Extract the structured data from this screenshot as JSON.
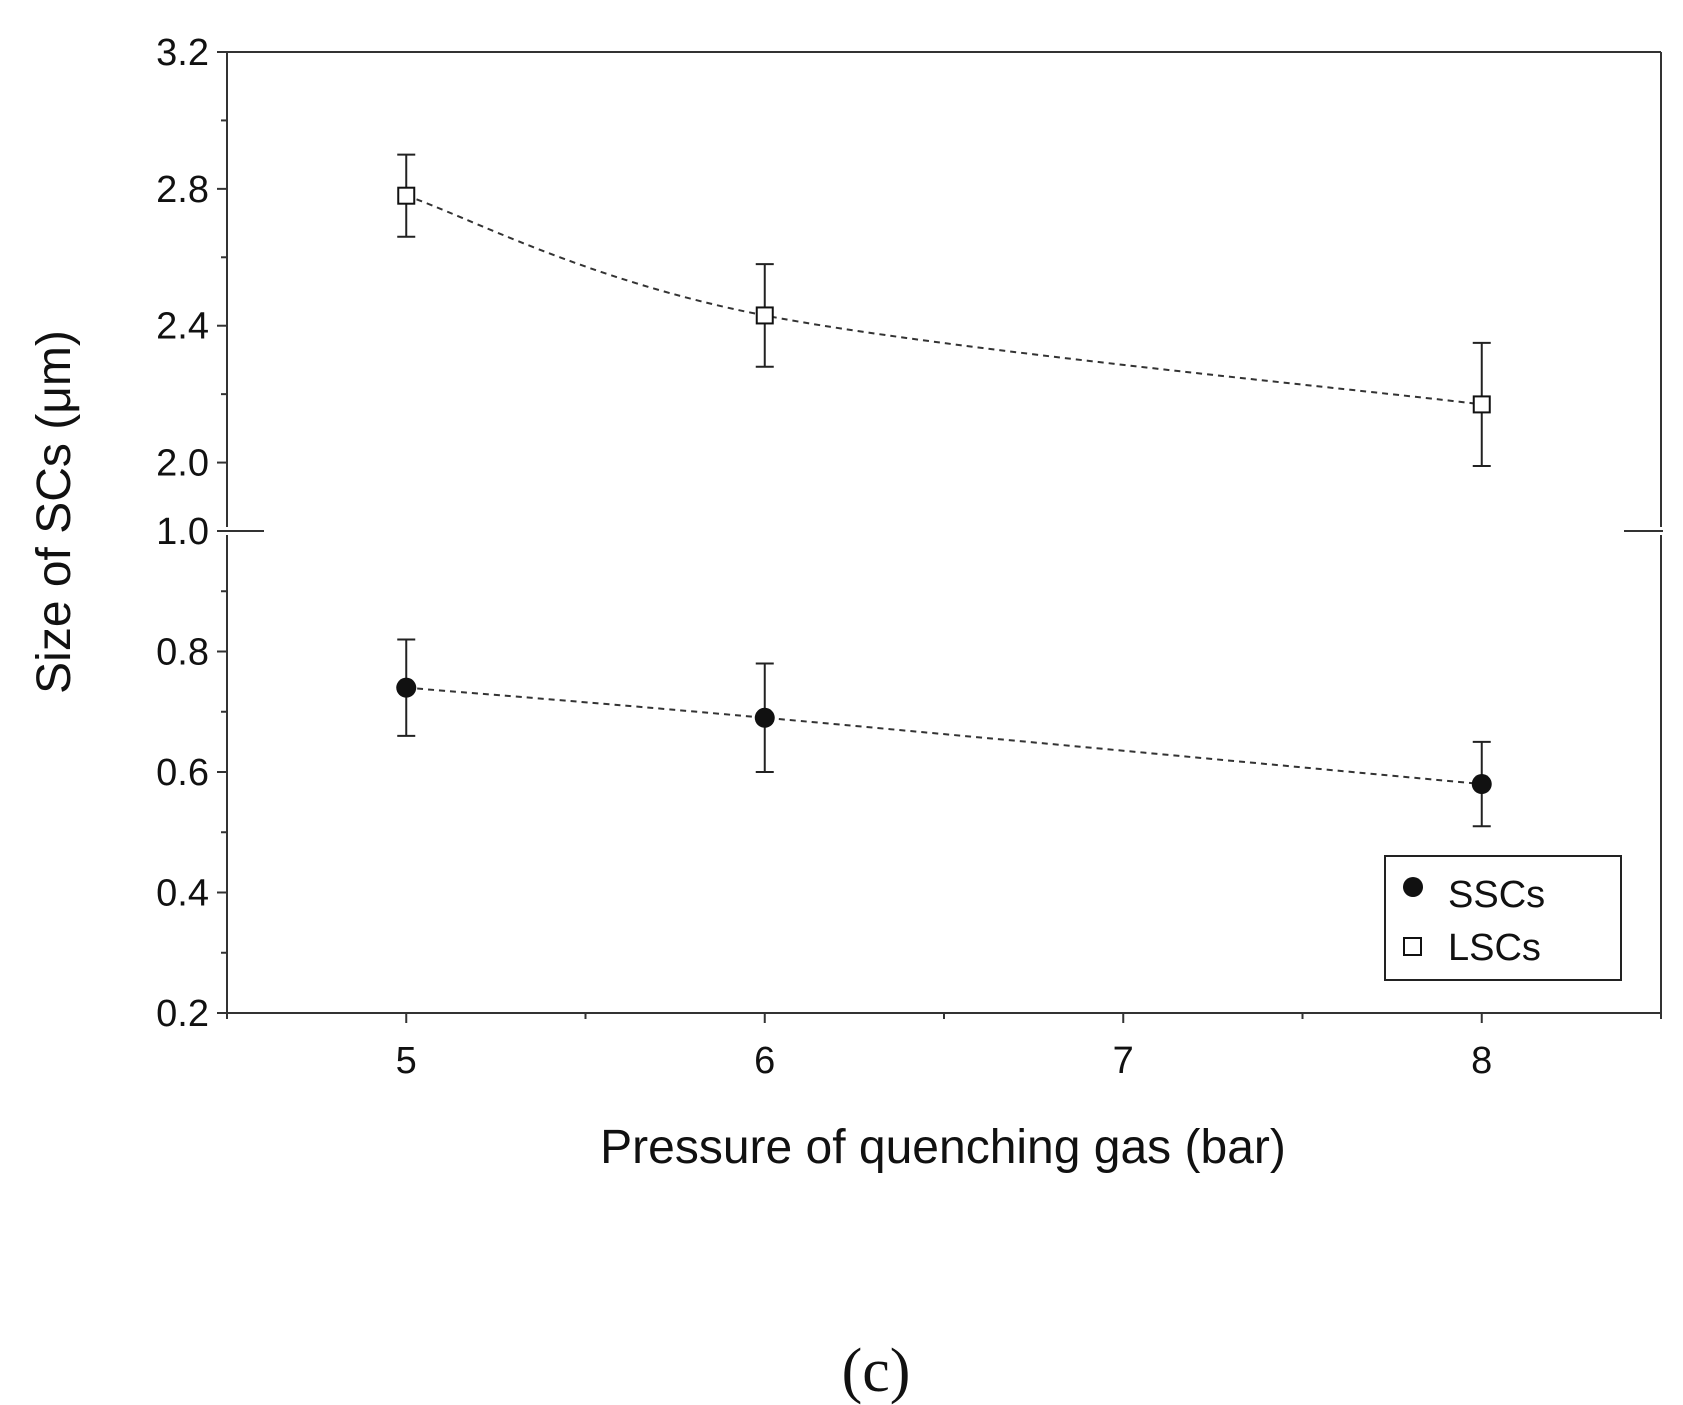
{
  "chart_data": {
    "type": "scatter",
    "title": "",
    "xlabel": "Pressure of quenching gas (bar)",
    "ylabel": "Size of SCs (μm)",
    "panel_label": "(c)",
    "xlim": [
      4.5,
      8.5
    ],
    "x_ticks": [
      5,
      6,
      7,
      8
    ],
    "x_tick_labels": [
      "5",
      "6",
      "7",
      "8"
    ],
    "broken_y_axis": true,
    "y_segments": [
      {
        "name": "lower",
        "ylim": [
          0.2,
          1.0
        ],
        "ticks": [
          0.2,
          0.4,
          0.6,
          0.8,
          1.0
        ],
        "tick_labels": [
          "0.2",
          "0.4",
          "0.6",
          "0.8",
          "1.0"
        ]
      },
      {
        "name": "upper",
        "ylim": [
          1.8,
          3.2
        ],
        "ticks": [
          2.0,
          2.4,
          2.8,
          3.2
        ],
        "tick_labels": [
          "2.0",
          "2.4",
          "2.8",
          "3.2"
        ]
      }
    ],
    "series": [
      {
        "name": "SSCs",
        "marker": "filled-circle",
        "segment": "lower",
        "x": [
          5,
          6,
          8
        ],
        "y": [
          0.74,
          0.69,
          0.58
        ],
        "yerr_low": [
          0.66,
          0.6,
          0.51
        ],
        "yerr_high": [
          0.82,
          0.78,
          0.65
        ],
        "fit_line": "dashed"
      },
      {
        "name": "LSCs",
        "marker": "open-square",
        "segment": "upper",
        "x": [
          5,
          6,
          8
        ],
        "y": [
          2.78,
          2.43,
          2.17
        ],
        "yerr_low": [
          2.66,
          2.28,
          1.99
        ],
        "yerr_high": [
          2.9,
          2.58,
          2.35
        ],
        "fit_line": "dashed"
      }
    ],
    "legend": {
      "placement": "bottom-right",
      "entries": [
        "SSCs",
        "LSCs"
      ]
    },
    "colors": {
      "ink": "#111111",
      "frame": "#333333",
      "background": "#ffffff"
    }
  }
}
